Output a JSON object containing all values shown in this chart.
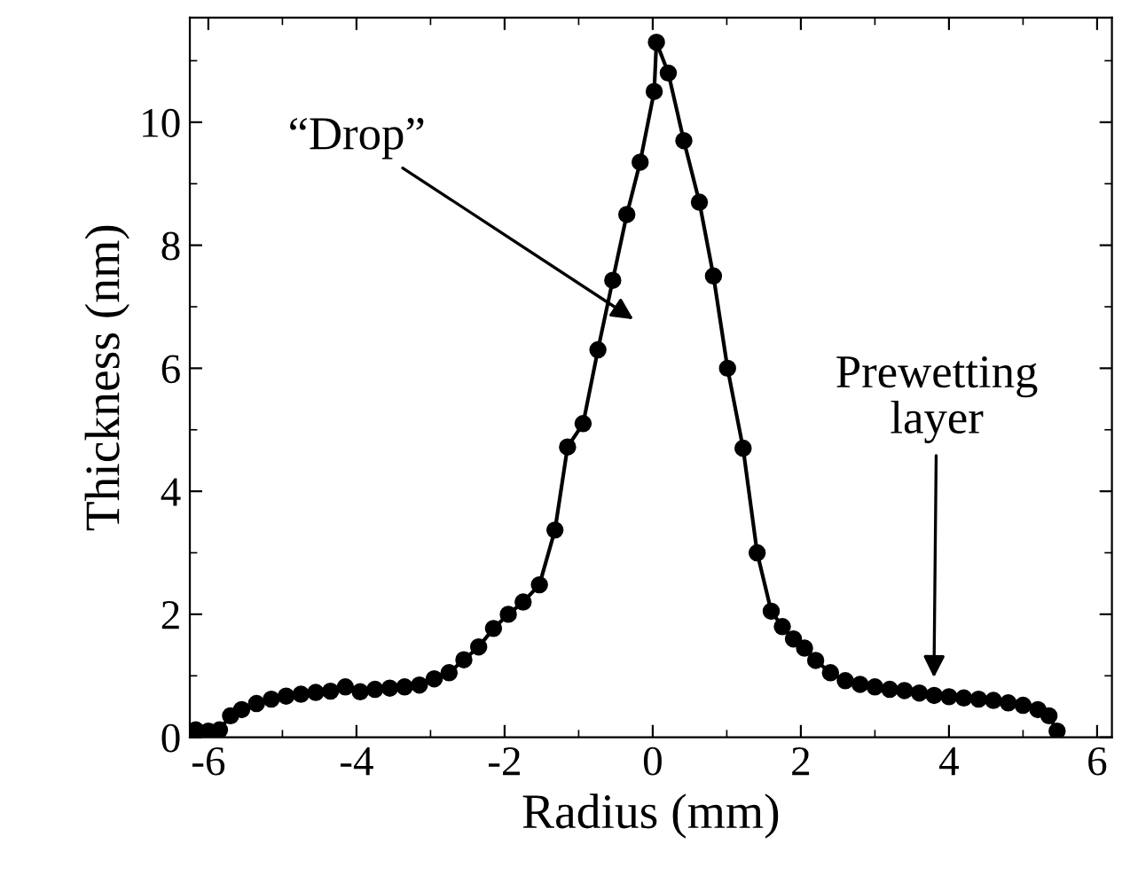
{
  "chart_data": {
    "type": "line",
    "xlabel": "Radius (mm)",
    "ylabel": "Thickness (nm)",
    "xlim": [
      -6.25,
      6.2
    ],
    "ylim": [
      0,
      11.7
    ],
    "xticks": [
      -6,
      -4,
      -2,
      0,
      2,
      4,
      6
    ],
    "yticks": [
      0,
      2,
      4,
      6,
      8,
      10
    ],
    "marker": "circle",
    "line_style": "solid",
    "grid": false,
    "legend": false,
    "series": [
      {
        "color": "#000000",
        "x": [
          -6.17,
          -6.0,
          -5.85,
          -5.7,
          -5.55,
          -5.35,
          -5.15,
          -4.95,
          -4.75,
          -4.55,
          -4.35,
          -4.15,
          -3.95,
          -3.75,
          -3.55,
          -3.35,
          -3.15,
          -2.95,
          -2.75,
          -2.55,
          -2.35,
          -2.15,
          -1.95,
          -1.75,
          -1.53,
          -1.32,
          -1.15,
          -0.94,
          -0.74,
          -0.54,
          -0.35,
          -0.17,
          0.02,
          0.05,
          0.21,
          0.42,
          0.63,
          0.82,
          1.01,
          1.22,
          1.41,
          1.6,
          1.75,
          1.9,
          2.05,
          2.2,
          2.4,
          2.6,
          2.8,
          3.0,
          3.2,
          3.4,
          3.6,
          3.8,
          4.0,
          4.2,
          4.4,
          4.6,
          4.8,
          5.0,
          5.2,
          5.35,
          5.46
        ],
        "values": [
          0.12,
          0.1,
          0.12,
          0.35,
          0.45,
          0.55,
          0.62,
          0.67,
          0.7,
          0.73,
          0.75,
          0.82,
          0.74,
          0.78,
          0.8,
          0.82,
          0.85,
          0.95,
          1.05,
          1.26,
          1.47,
          1.77,
          2.0,
          2.2,
          2.48,
          3.37,
          4.72,
          5.1,
          6.3,
          7.43,
          8.5,
          9.35,
          10.5,
          11.3,
          10.8,
          9.7,
          8.7,
          7.5,
          6.0,
          4.7,
          3.0,
          2.05,
          1.8,
          1.6,
          1.45,
          1.25,
          1.05,
          0.92,
          0.86,
          0.82,
          0.78,
          0.76,
          0.72,
          0.68,
          0.66,
          0.64,
          0.62,
          0.6,
          0.56,
          0.52,
          0.45,
          0.35,
          0.1
        ]
      }
    ],
    "annotations": [
      "“Drop”",
      "Prewetting\nlayer"
    ]
  }
}
